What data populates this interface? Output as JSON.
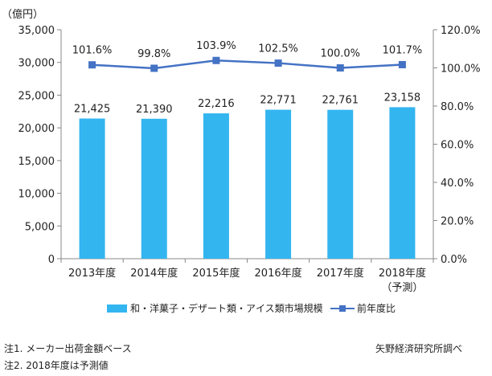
{
  "chart_data": {
    "type": "bar",
    "y_unit_label": "（億円）",
    "categories": [
      "2013年度",
      "2014年度",
      "2015年度",
      "2016年度",
      "2017年度",
      "2018年度"
    ],
    "category_sublabels": [
      "",
      "",
      "",
      "",
      "",
      "（予測）"
    ],
    "series": [
      {
        "name": "和・洋菓子・デザート類・アイス類市場規模",
        "type": "bar",
        "axis": "left",
        "color": "#33B5F0",
        "values": [
          21425,
          21390,
          22216,
          22771,
          22761,
          23158
        ],
        "labels": [
          "21,425",
          "21,390",
          "22,216",
          "22,771",
          "22,761",
          "23,158"
        ]
      },
      {
        "name": "前年度比",
        "type": "line",
        "axis": "right",
        "color": "#4472C4",
        "values": [
          101.6,
          99.8,
          103.9,
          102.5,
          100.0,
          101.7
        ],
        "labels": [
          "101.6%",
          "99.8%",
          "103.9%",
          "102.5%",
          "100.0%",
          "101.7%"
        ]
      }
    ],
    "left_axis": {
      "ylim": [
        0,
        35000
      ],
      "ticks": [
        0,
        5000,
        10000,
        15000,
        20000,
        25000,
        30000,
        35000
      ],
      "tick_labels": [
        "0",
        "5,000",
        "10,000",
        "15,000",
        "20,000",
        "25,000",
        "30,000",
        "35,000"
      ]
    },
    "right_axis": {
      "ylim": [
        0,
        120
      ],
      "ticks": [
        0,
        20,
        40,
        60,
        80,
        100,
        120
      ],
      "tick_labels": [
        "0.0%",
        "20.0%",
        "40.0%",
        "60.0%",
        "80.0%",
        "100.0%",
        "120.0%"
      ]
    },
    "grid": false,
    "legend_position": "bottom"
  },
  "notes": {
    "note1": "注1. メーカー出荷金額ベース",
    "note2": "注2. 2018年度は予測値",
    "source": "矢野経済研究所調べ"
  }
}
